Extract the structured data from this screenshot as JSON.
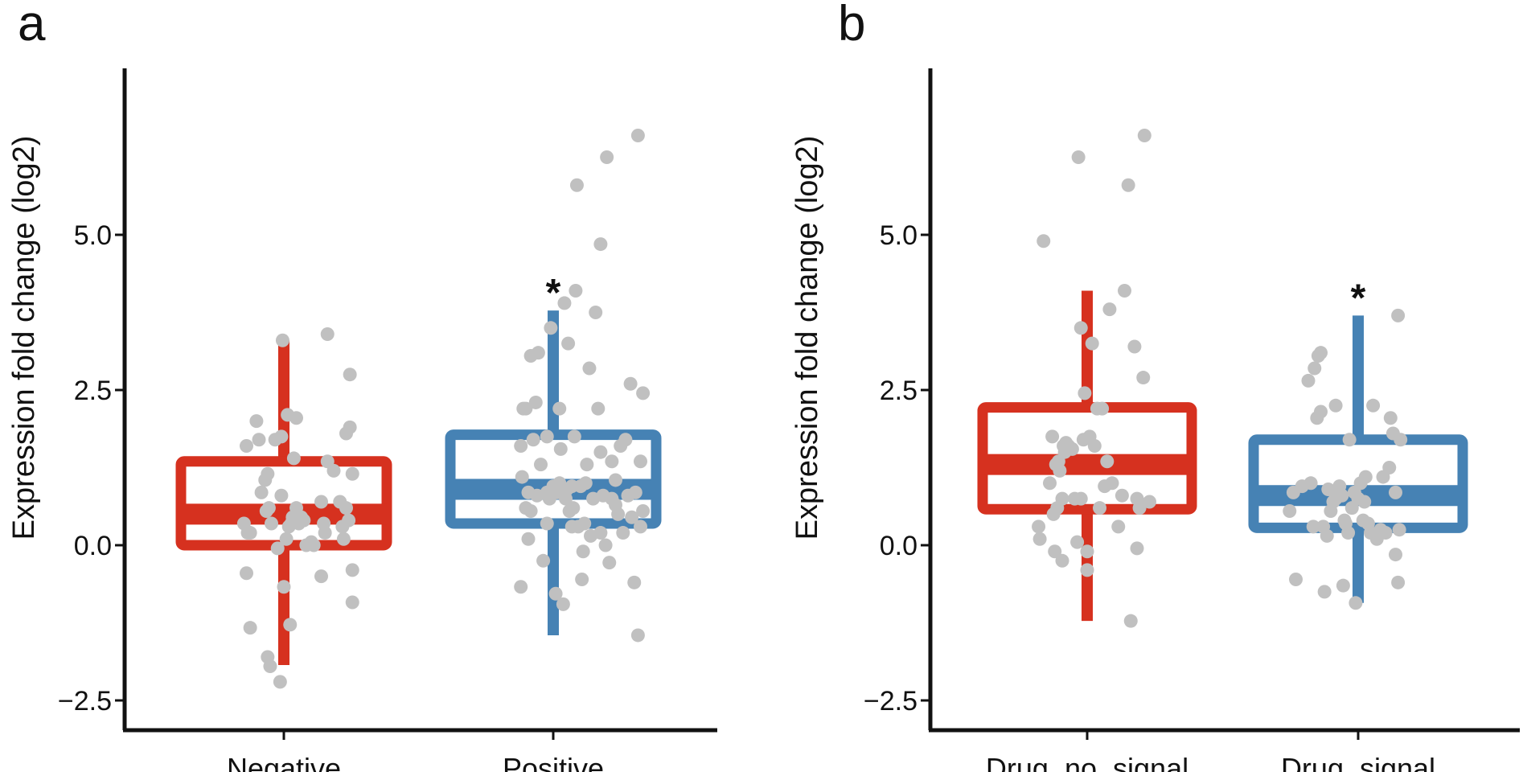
{
  "chart_data": [
    {
      "type": "box",
      "panel_label": "a",
      "ylabel": "Expression fold change (log2)",
      "ylim": [
        -3.0,
        7.5
      ],
      "yticks": [
        -2.5,
        0.0,
        2.5,
        5.0
      ],
      "ytick_labels": [
        "−2.5",
        "0.0",
        "2.5",
        "5.0"
      ],
      "categories": [
        "Negative",
        "Positive"
      ],
      "boxes": [
        {
          "name": "Negative",
          "color": "#D6311F",
          "whisker_low": -1.93,
          "q1": 0.0,
          "median": 0.5,
          "q3": 1.35,
          "whisker_high": 3.3,
          "significance": ""
        },
        {
          "name": "Positive",
          "color": "#4682B4",
          "whisker_low": -1.45,
          "q1": 0.35,
          "median": 0.9,
          "q3": 1.78,
          "whisker_high": 3.78,
          "significance": "*"
        }
      ],
      "points": [
        [
          [
            -0.1,
            0.35
          ],
          [
            -0.32,
            0.35
          ],
          [
            -0.29,
            0.2
          ],
          [
            -0.27,
            0.2
          ],
          [
            -0.3,
            1.6
          ],
          [
            -0.3,
            -0.45
          ],
          [
            -0.27,
            -1.33
          ],
          [
            -0.22,
            2.0
          ],
          [
            -0.2,
            1.7
          ],
          [
            -0.18,
            0.85
          ],
          [
            -0.15,
            1.05
          ],
          [
            -0.13,
            1.15
          ],
          [
            -0.14,
            0.55
          ],
          [
            -0.12,
            0.6
          ],
          [
            -0.13,
            -1.8
          ],
          [
            -0.11,
            -1.95
          ],
          [
            -0.07,
            1.7
          ],
          [
            -0.05,
            -0.05
          ],
          [
            -0.02,
            1.75
          ],
          [
            -0.01,
            3.3
          ],
          [
            0.0,
            -0.67
          ],
          [
            0.03,
            2.1
          ],
          [
            0.04,
            0.3
          ],
          [
            0.06,
            0.35
          ],
          [
            0.05,
            -1.28
          ],
          [
            -0.03,
            -2.2
          ],
          [
            0.07,
            0.45
          ],
          [
            0.08,
            1.4
          ],
          [
            -0.02,
            0.8
          ],
          [
            0.1,
            0.6
          ],
          [
            0.12,
            0.35
          ],
          [
            0.14,
            0.45
          ],
          [
            0.16,
            0.4
          ],
          [
            0.1,
            2.05
          ],
          [
            0.18,
            0.0
          ],
          [
            0.22,
            0.05
          ],
          [
            0.24,
            0.0
          ],
          [
            0.3,
            -0.5
          ],
          [
            0.3,
            0.7
          ],
          [
            0.35,
            1.35
          ],
          [
            0.33,
            0.2
          ],
          [
            0.35,
            3.4
          ],
          [
            0.4,
            1.2
          ],
          [
            0.45,
            0.7
          ],
          [
            0.47,
            0.3
          ],
          [
            0.5,
            1.8
          ],
          [
            0.5,
            0.6
          ],
          [
            0.52,
            0.4
          ],
          [
            0.53,
            1.9
          ],
          [
            0.53,
            2.75
          ],
          [
            0.55,
            1.15
          ],
          [
            0.55,
            -0.4
          ],
          [
            0.55,
            -0.92
          ],
          [
            0.48,
            0.1
          ],
          [
            0.32,
            0.35
          ],
          [
            0.02,
            0.1
          ]
        ],
        [
          [
            -0.2,
            0.85
          ],
          [
            -0.22,
            2.2
          ],
          [
            -0.24,
            2.2
          ],
          [
            -0.25,
            1.1
          ],
          [
            -0.26,
            1.6
          ],
          [
            -0.26,
            -0.67
          ],
          [
            -0.22,
            0.6
          ],
          [
            -0.2,
            0.1
          ],
          [
            -0.18,
            3.05
          ],
          [
            -0.16,
            1.7
          ],
          [
            -0.14,
            2.3
          ],
          [
            -0.13,
            0.8
          ],
          [
            -0.12,
            3.1
          ],
          [
            -0.1,
            1.3
          ],
          [
            -0.08,
            -0.25
          ],
          [
            -0.05,
            0.85
          ],
          [
            -0.05,
            1.75
          ],
          [
            -0.03,
            0.75
          ],
          [
            -0.02,
            3.5
          ],
          [
            0.0,
            0.95
          ],
          [
            0.02,
            -0.78
          ],
          [
            0.03,
            0.85
          ],
          [
            0.05,
            2.2
          ],
          [
            0.06,
            1.55
          ],
          [
            0.08,
            -0.95
          ],
          [
            0.05,
            1.0
          ],
          [
            0.1,
            0.75
          ],
          [
            0.11,
            0.9
          ],
          [
            0.12,
            3.25
          ],
          [
            0.13,
            0.55
          ],
          [
            0.15,
            0.95
          ],
          [
            0.15,
            0.3
          ],
          [
            0.16,
            0.6
          ],
          [
            0.17,
            1.75
          ],
          [
            0.18,
            4.1
          ],
          [
            0.19,
            5.8
          ],
          [
            0.2,
            0.3
          ],
          [
            0.22,
            0.95
          ],
          [
            0.24,
            -0.1
          ],
          [
            0.25,
            0.35
          ],
          [
            0.23,
            -0.55
          ],
          [
            0.27,
            1.3
          ],
          [
            0.29,
            2.85
          ],
          [
            0.3,
            0.15
          ],
          [
            0.32,
            0.75
          ],
          [
            0.34,
            3.75
          ],
          [
            0.36,
            2.2
          ],
          [
            0.38,
            4.85
          ],
          [
            0.38,
            0.2
          ],
          [
            0.38,
            1.5
          ],
          [
            0.4,
            0.8
          ],
          [
            0.42,
            0.0
          ],
          [
            0.43,
            6.25
          ],
          [
            0.45,
            -0.28
          ],
          [
            0.47,
            1.35
          ],
          [
            0.47,
            0.75
          ],
          [
            0.5,
            0.65
          ],
          [
            0.5,
            1.05
          ],
          [
            0.52,
            0.5
          ],
          [
            0.54,
            1.6
          ],
          [
            0.56,
            0.2
          ],
          [
            0.58,
            1.7
          ],
          [
            0.6,
            0.8
          ],
          [
            0.62,
            2.6
          ],
          [
            0.63,
            0.45
          ],
          [
            0.65,
            -0.6
          ],
          [
            0.68,
            6.6
          ],
          [
            0.68,
            -1.45
          ],
          [
            0.7,
            1.35
          ],
          [
            0.7,
            0.3
          ],
          [
            0.72,
            2.45
          ],
          [
            0.72,
            0.55
          ],
          [
            0.66,
            0.85
          ],
          [
            -0.05,
            0.35
          ],
          [
            0.26,
            1.0
          ],
          [
            -0.18,
            0.55
          ],
          [
            0.09,
            3.9
          ]
        ]
      ]
    },
    {
      "type": "box",
      "panel_label": "b",
      "ylabel": "Expression fold change (log2)",
      "ylim": [
        -3.0,
        7.5
      ],
      "yticks": [
        -2.5,
        0.0,
        2.5,
        5.0
      ],
      "ytick_labels": [
        "−2.5",
        "0.0",
        "2.5",
        "5.0"
      ],
      "categories": [
        "Drug_no_signal",
        "Drug_signal"
      ],
      "boxes": [
        {
          "name": "Drug_no_signal",
          "color": "#D6311F",
          "whisker_low": -1.22,
          "q1": 0.58,
          "median": 1.3,
          "q3": 2.22,
          "whisker_high": 4.1,
          "significance": ""
        },
        {
          "name": "Drug_signal",
          "color": "#4682B4",
          "whisker_low": -0.93,
          "q1": 0.28,
          "median": 0.8,
          "q3": 1.7,
          "whisker_high": 3.7,
          "significance": "*"
        }
      ],
      "points": [
        [
          [
            -0.39,
            0.3
          ],
          [
            -0.38,
            0.1
          ],
          [
            -0.35,
            4.9
          ],
          [
            -0.3,
            1.0
          ],
          [
            -0.28,
            1.75
          ],
          [
            -0.27,
            0.5
          ],
          [
            -0.26,
            -0.1
          ],
          [
            -0.25,
            1.3
          ],
          [
            -0.23,
            1.35
          ],
          [
            -0.22,
            1.2
          ],
          [
            -0.2,
            0.75
          ],
          [
            -0.2,
            -0.25
          ],
          [
            -0.19,
            1.6
          ],
          [
            -0.18,
            1.5
          ],
          [
            -0.17,
            1.65
          ],
          [
            -0.15,
            1.6
          ],
          [
            -0.12,
            1.55
          ],
          [
            -0.1,
            0.75
          ],
          [
            -0.08,
            0.05
          ],
          [
            -0.07,
            6.25
          ],
          [
            -0.05,
            0.75
          ],
          [
            -0.05,
            3.5
          ],
          [
            -0.03,
            1.7
          ],
          [
            -0.02,
            2.45
          ],
          [
            0.0,
            -0.1
          ],
          [
            0.0,
            -0.4
          ],
          [
            0.02,
            1.75
          ],
          [
            0.04,
            3.25
          ],
          [
            0.06,
            1.6
          ],
          [
            0.08,
            2.2
          ],
          [
            0.1,
            0.6
          ],
          [
            0.12,
            2.2
          ],
          [
            0.14,
            0.95
          ],
          [
            0.16,
            1.35
          ],
          [
            0.18,
            3.8
          ],
          [
            0.2,
            1.0
          ],
          [
            0.25,
            0.3
          ],
          [
            0.28,
            0.8
          ],
          [
            0.3,
            4.1
          ],
          [
            0.33,
            5.8
          ],
          [
            0.35,
            -1.22
          ],
          [
            0.38,
            3.2
          ],
          [
            0.4,
            0.75
          ],
          [
            0.4,
            -0.05
          ],
          [
            0.42,
            0.6
          ],
          [
            0.45,
            2.7
          ],
          [
            0.46,
            6.6
          ],
          [
            0.5,
            0.7
          ],
          [
            -0.24,
            0.6
          ]
        ],
        [
          [
            -0.55,
            0.55
          ],
          [
            -0.52,
            0.85
          ],
          [
            -0.5,
            -0.55
          ],
          [
            -0.45,
            0.95
          ],
          [
            -0.4,
            2.65
          ],
          [
            -0.38,
            1.0
          ],
          [
            -0.35,
            2.85
          ],
          [
            -0.33,
            2.05
          ],
          [
            -0.32,
            3.05
          ],
          [
            -0.3,
            3.1
          ],
          [
            -0.3,
            2.15
          ],
          [
            -0.28,
            0.3
          ],
          [
            -0.27,
            -0.75
          ],
          [
            -0.25,
            0.15
          ],
          [
            -0.24,
            0.9
          ],
          [
            -0.22,
            0.55
          ],
          [
            -0.2,
            0.7
          ],
          [
            -0.18,
            0.75
          ],
          [
            -0.17,
            0.85
          ],
          [
            -0.15,
            0.95
          ],
          [
            -0.13,
            0.8
          ],
          [
            -0.12,
            -0.65
          ],
          [
            -0.11,
            0.4
          ],
          [
            -0.1,
            0.35
          ],
          [
            -0.08,
            0.2
          ],
          [
            -0.07,
            1.7
          ],
          [
            -0.05,
            0.6
          ],
          [
            -0.03,
            0.85
          ],
          [
            -0.02,
            -0.93
          ],
          [
            0.0,
            0.75
          ],
          [
            0.02,
            1.0
          ],
          [
            0.04,
            0.4
          ],
          [
            0.06,
            1.1
          ],
          [
            0.08,
            0.35
          ],
          [
            0.1,
            0.2
          ],
          [
            0.12,
            2.25
          ],
          [
            0.15,
            0.1
          ],
          [
            0.18,
            0.25
          ],
          [
            0.2,
            1.1
          ],
          [
            0.22,
            0.2
          ],
          [
            0.25,
            1.25
          ],
          [
            0.26,
            2.05
          ],
          [
            0.28,
            1.8
          ],
          [
            0.3,
            0.85
          ],
          [
            0.3,
            -0.15
          ],
          [
            0.32,
            3.7
          ],
          [
            0.34,
            1.7
          ],
          [
            0.32,
            -0.6
          ],
          [
            0.33,
            0.25
          ],
          [
            -0.18,
            2.25
          ],
          [
            0.05,
            0.7
          ],
          [
            -0.36,
            0.3
          ]
        ]
      ]
    }
  ],
  "style": {
    "point_color": "#C0C0C0",
    "axis_color": "#111111",
    "background": "#FFFFFF"
  }
}
